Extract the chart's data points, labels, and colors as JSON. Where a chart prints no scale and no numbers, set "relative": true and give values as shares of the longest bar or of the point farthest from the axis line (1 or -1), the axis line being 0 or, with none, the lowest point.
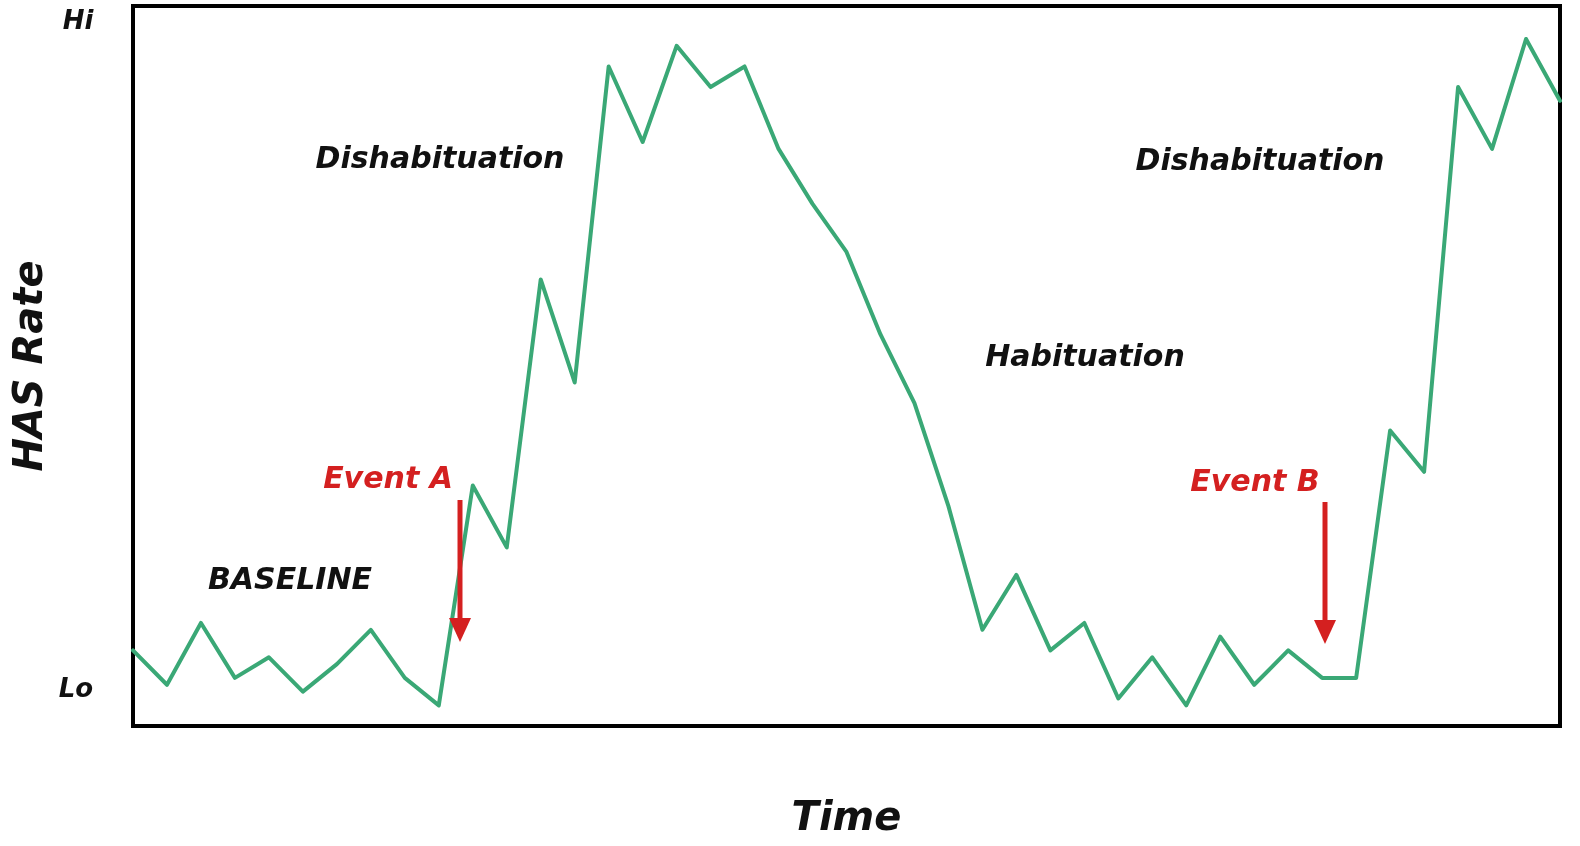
{
  "chart_data": {
    "type": "line",
    "xlabel": "Time",
    "ylabel": "HAS Rate",
    "relative": true,
    "categories": [
      null,
      null,
      null,
      null,
      null,
      null,
      null,
      null,
      null,
      null,
      null,
      null,
      null,
      null,
      null,
      null,
      null,
      null,
      null,
      null,
      null,
      null,
      null,
      null,
      null,
      null,
      null,
      null,
      null,
      null,
      null,
      null,
      null,
      null,
      null,
      null,
      null,
      null,
      null,
      null,
      null,
      null,
      null
    ],
    "series": [
      {
        "color": "#3aa876",
        "values": [
          0.11,
          0.06,
          0.15,
          0.07,
          0.1,
          0.05,
          0.09,
          0.14,
          0.07,
          0.03,
          0.35,
          0.26,
          0.65,
          0.5,
          0.96,
          0.85,
          0.99,
          0.93,
          0.96,
          0.84,
          0.76,
          0.69,
          0.57,
          0.47,
          0.32,
          0.14,
          0.22,
          0.11,
          0.15,
          0.04,
          0.1,
          0.03,
          0.13,
          0.06,
          0.11,
          0.07,
          0.07,
          0.43,
          0.37,
          0.93,
          0.84,
          1.0,
          0.91
        ]
      }
    ],
    "grid": false,
    "marker": "none",
    "line_style": "solid",
    "annotations": [
      "Hi",
      "Lo",
      "Dishabituation",
      "Habituation",
      "Dishabituation",
      "BASELINE",
      "Event A",
      "Event B"
    ]
  }
}
